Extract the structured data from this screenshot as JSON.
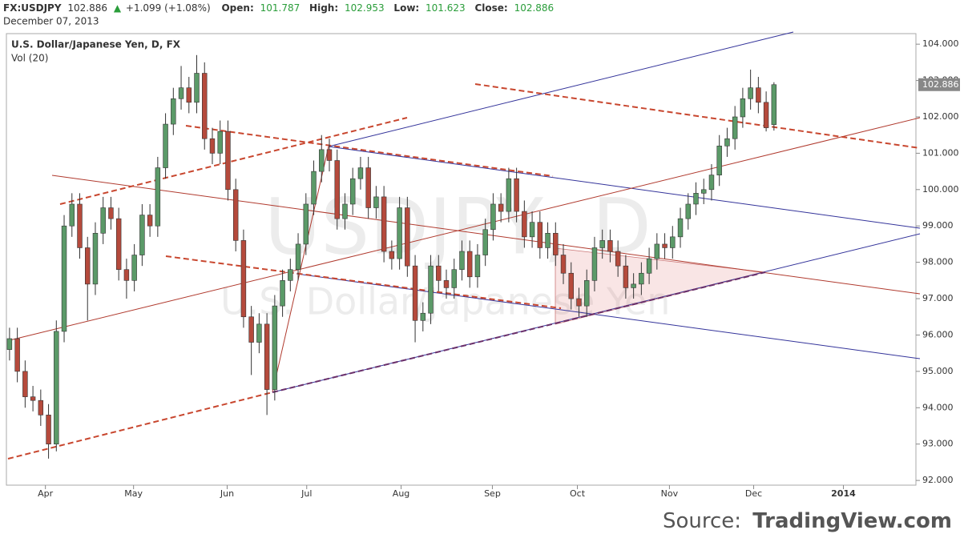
{
  "header": {
    "symbol": "FX:USDJPY",
    "change": "+1.099 (+1.08%)",
    "open_label": "Open:",
    "high_label": "High:",
    "low_label": "Low:",
    "close_label": "Close:",
    "date": "December 07, 2013",
    "source_label": "Source:",
    "source_name": "TradingView.com"
  },
  "chart_data": {
    "type": "candlestick",
    "title": "U.S. Dollar/Japanese Yen, D, FX",
    "subtitle": "Vol (20)",
    "watermark": "USDJPY, D",
    "watermark_subtitle": "U.S. Dollar/Japanese Yen",
    "up_color": "#5b9a68",
    "down_color": "#b54a3c",
    "open": [
      95.6,
      95.9,
      95.0,
      94.3,
      94.2,
      93.8,
      93.0,
      96.1,
      99.0,
      99.6,
      98.4,
      97.4,
      98.8,
      99.5,
      99.2,
      97.8,
      97.5,
      98.2,
      99.3,
      99.0,
      100.6,
      101.8,
      102.5,
      102.8,
      102.4,
      103.2,
      101.4,
      101.0,
      101.6,
      100.0,
      98.6,
      96.5,
      95.8,
      96.3,
      94.5,
      96.8,
      97.5,
      97.8,
      98.5,
      99.6,
      100.5,
      101.1,
      100.8,
      99.2,
      99.6,
      100.3,
      100.6,
      99.5,
      99.8,
      98.3,
      98.1,
      99.5,
      97.9,
      96.4,
      96.6,
      97.9,
      97.5,
      97.3,
      97.8,
      98.3,
      97.6,
      98.2,
      98.9,
      99.6,
      99.4,
      100.3,
      99.4,
      98.7,
      99.1,
      98.4,
      98.8,
      98.2,
      97.7,
      97.0,
      96.8,
      97.5,
      98.4,
      98.6,
      98.3,
      97.9,
      97.3,
      97.4,
      97.7,
      98.1,
      98.5,
      98.4,
      98.7,
      99.2,
      99.6,
      99.9,
      100.0,
      100.4,
      101.2,
      101.4,
      102.0,
      102.5,
      102.8,
      102.4,
      101.787
    ],
    "high": [
      96.2,
      96.2,
      95.3,
      94.6,
      94.5,
      94.1,
      96.4,
      99.3,
      99.9,
      99.9,
      98.7,
      99.1,
      99.8,
      99.8,
      99.5,
      98.1,
      98.5,
      99.6,
      99.6,
      100.9,
      102.1,
      102.8,
      103.4,
      103.1,
      103.7,
      103.5,
      101.7,
      101.9,
      101.9,
      100.3,
      98.9,
      96.8,
      96.6,
      96.6,
      97.1,
      97.8,
      98.1,
      98.8,
      99.9,
      100.8,
      101.5,
      101.4,
      101.1,
      99.9,
      100.6,
      100.9,
      100.9,
      100.1,
      100.1,
      98.6,
      99.8,
      99.8,
      98.2,
      96.9,
      98.2,
      98.2,
      97.8,
      98.1,
      98.6,
      98.6,
      98.5,
      99.2,
      99.9,
      99.9,
      100.6,
      100.6,
      99.7,
      99.4,
      99.4,
      99.1,
      99.1,
      98.5,
      98.0,
      97.3,
      97.8,
      98.7,
      98.9,
      98.9,
      98.6,
      98.2,
      97.7,
      98.0,
      98.4,
      98.8,
      98.8,
      99.0,
      99.5,
      99.9,
      100.2,
      100.3,
      100.7,
      101.5,
      101.7,
      102.3,
      102.8,
      103.3,
      103.1,
      102.7,
      102.953
    ],
    "low": [
      95.3,
      94.7,
      94.0,
      93.9,
      93.5,
      92.6,
      92.8,
      95.8,
      98.7,
      98.1,
      96.4,
      97.1,
      98.5,
      98.9,
      97.5,
      97.0,
      97.2,
      97.9,
      98.7,
      98.7,
      100.3,
      101.5,
      102.2,
      102.1,
      102.1,
      101.1,
      100.7,
      100.7,
      99.7,
      98.3,
      96.2,
      94.9,
      95.5,
      93.8,
      94.2,
      96.5,
      97.2,
      97.5,
      98.2,
      99.3,
      100.2,
      100.5,
      98.9,
      98.9,
      99.3,
      100.0,
      99.2,
      99.2,
      98.0,
      97.8,
      97.8,
      97.6,
      95.8,
      96.1,
      96.3,
      97.2,
      97.0,
      97.0,
      97.5,
      97.3,
      97.3,
      97.9,
      98.6,
      99.1,
      99.1,
      99.1,
      98.4,
      98.4,
      98.1,
      98.1,
      97.9,
      97.4,
      96.7,
      96.5,
      96.5,
      97.2,
      98.1,
      98.0,
      97.6,
      97.0,
      97.0,
      97.1,
      97.4,
      97.8,
      98.1,
      98.1,
      98.4,
      98.9,
      99.3,
      99.6,
      99.7,
      100.1,
      100.9,
      101.1,
      101.7,
      102.2,
      102.1,
      101.6,
      101.623
    ],
    "close": [
      95.9,
      95.0,
      94.3,
      94.2,
      93.8,
      93.0,
      96.1,
      99.0,
      99.6,
      98.4,
      97.4,
      98.8,
      99.5,
      99.2,
      97.8,
      97.5,
      98.2,
      99.3,
      99.0,
      100.6,
      101.8,
      102.5,
      102.8,
      102.4,
      103.2,
      101.4,
      101.0,
      101.6,
      100.0,
      98.6,
      96.5,
      95.8,
      96.3,
      94.5,
      96.8,
      97.5,
      97.8,
      98.5,
      99.6,
      100.5,
      101.1,
      100.8,
      99.2,
      99.6,
      100.3,
      100.6,
      99.5,
      99.8,
      98.3,
      98.1,
      99.5,
      97.9,
      96.4,
      96.6,
      97.9,
      97.5,
      97.3,
      97.8,
      98.3,
      97.6,
      98.2,
      98.9,
      99.6,
      99.4,
      100.3,
      99.4,
      98.7,
      99.1,
      98.4,
      98.8,
      98.2,
      97.7,
      97.0,
      96.8,
      97.5,
      98.4,
      98.6,
      98.3,
      97.9,
      97.3,
      97.4,
      97.7,
      98.1,
      98.5,
      98.4,
      98.7,
      99.2,
      99.6,
      99.9,
      100.0,
      100.4,
      101.2,
      101.4,
      102.0,
      102.5,
      102.8,
      102.4,
      101.7,
      102.886
    ],
    "xlim": [
      -0.4,
      116.2
    ],
    "xticks": [
      {
        "value": 4.6,
        "label": "Apr"
      },
      {
        "value": 15.9,
        "label": "May"
      },
      {
        "value": 27.9,
        "label": "Jun"
      },
      {
        "value": 38.1,
        "label": "Jul"
      },
      {
        "value": 50.2,
        "label": "Aug"
      },
      {
        "value": 61.9,
        "label": "Sep"
      },
      {
        "value": 72.8,
        "label": "Oct"
      },
      {
        "value": 84.6,
        "label": "Nov"
      },
      {
        "value": 95.4,
        "label": "Dec"
      },
      {
        "value": 106.9,
        "label": "2014"
      }
    ],
    "ylim": [
      91.87,
      104.29
    ],
    "yticks": [
      {
        "value": 92,
        "label": "92.000"
      },
      {
        "value": 93,
        "label": "93.000"
      },
      {
        "value": 94,
        "label": "94.000"
      },
      {
        "value": 95,
        "label": "95.000"
      },
      {
        "value": 96,
        "label": "96.000"
      },
      {
        "value": 97,
        "label": "97.000"
      },
      {
        "value": 98,
        "label": "98.000"
      },
      {
        "value": 99,
        "label": "99.000"
      },
      {
        "value": 100,
        "label": "100.000"
      },
      {
        "value": 101,
        "label": "101.000"
      },
      {
        "value": 102,
        "label": "102.000"
      },
      {
        "value": 103,
        "label": "103.000"
      },
      {
        "value": 104,
        "label": "104.000"
      }
    ]
  }
}
